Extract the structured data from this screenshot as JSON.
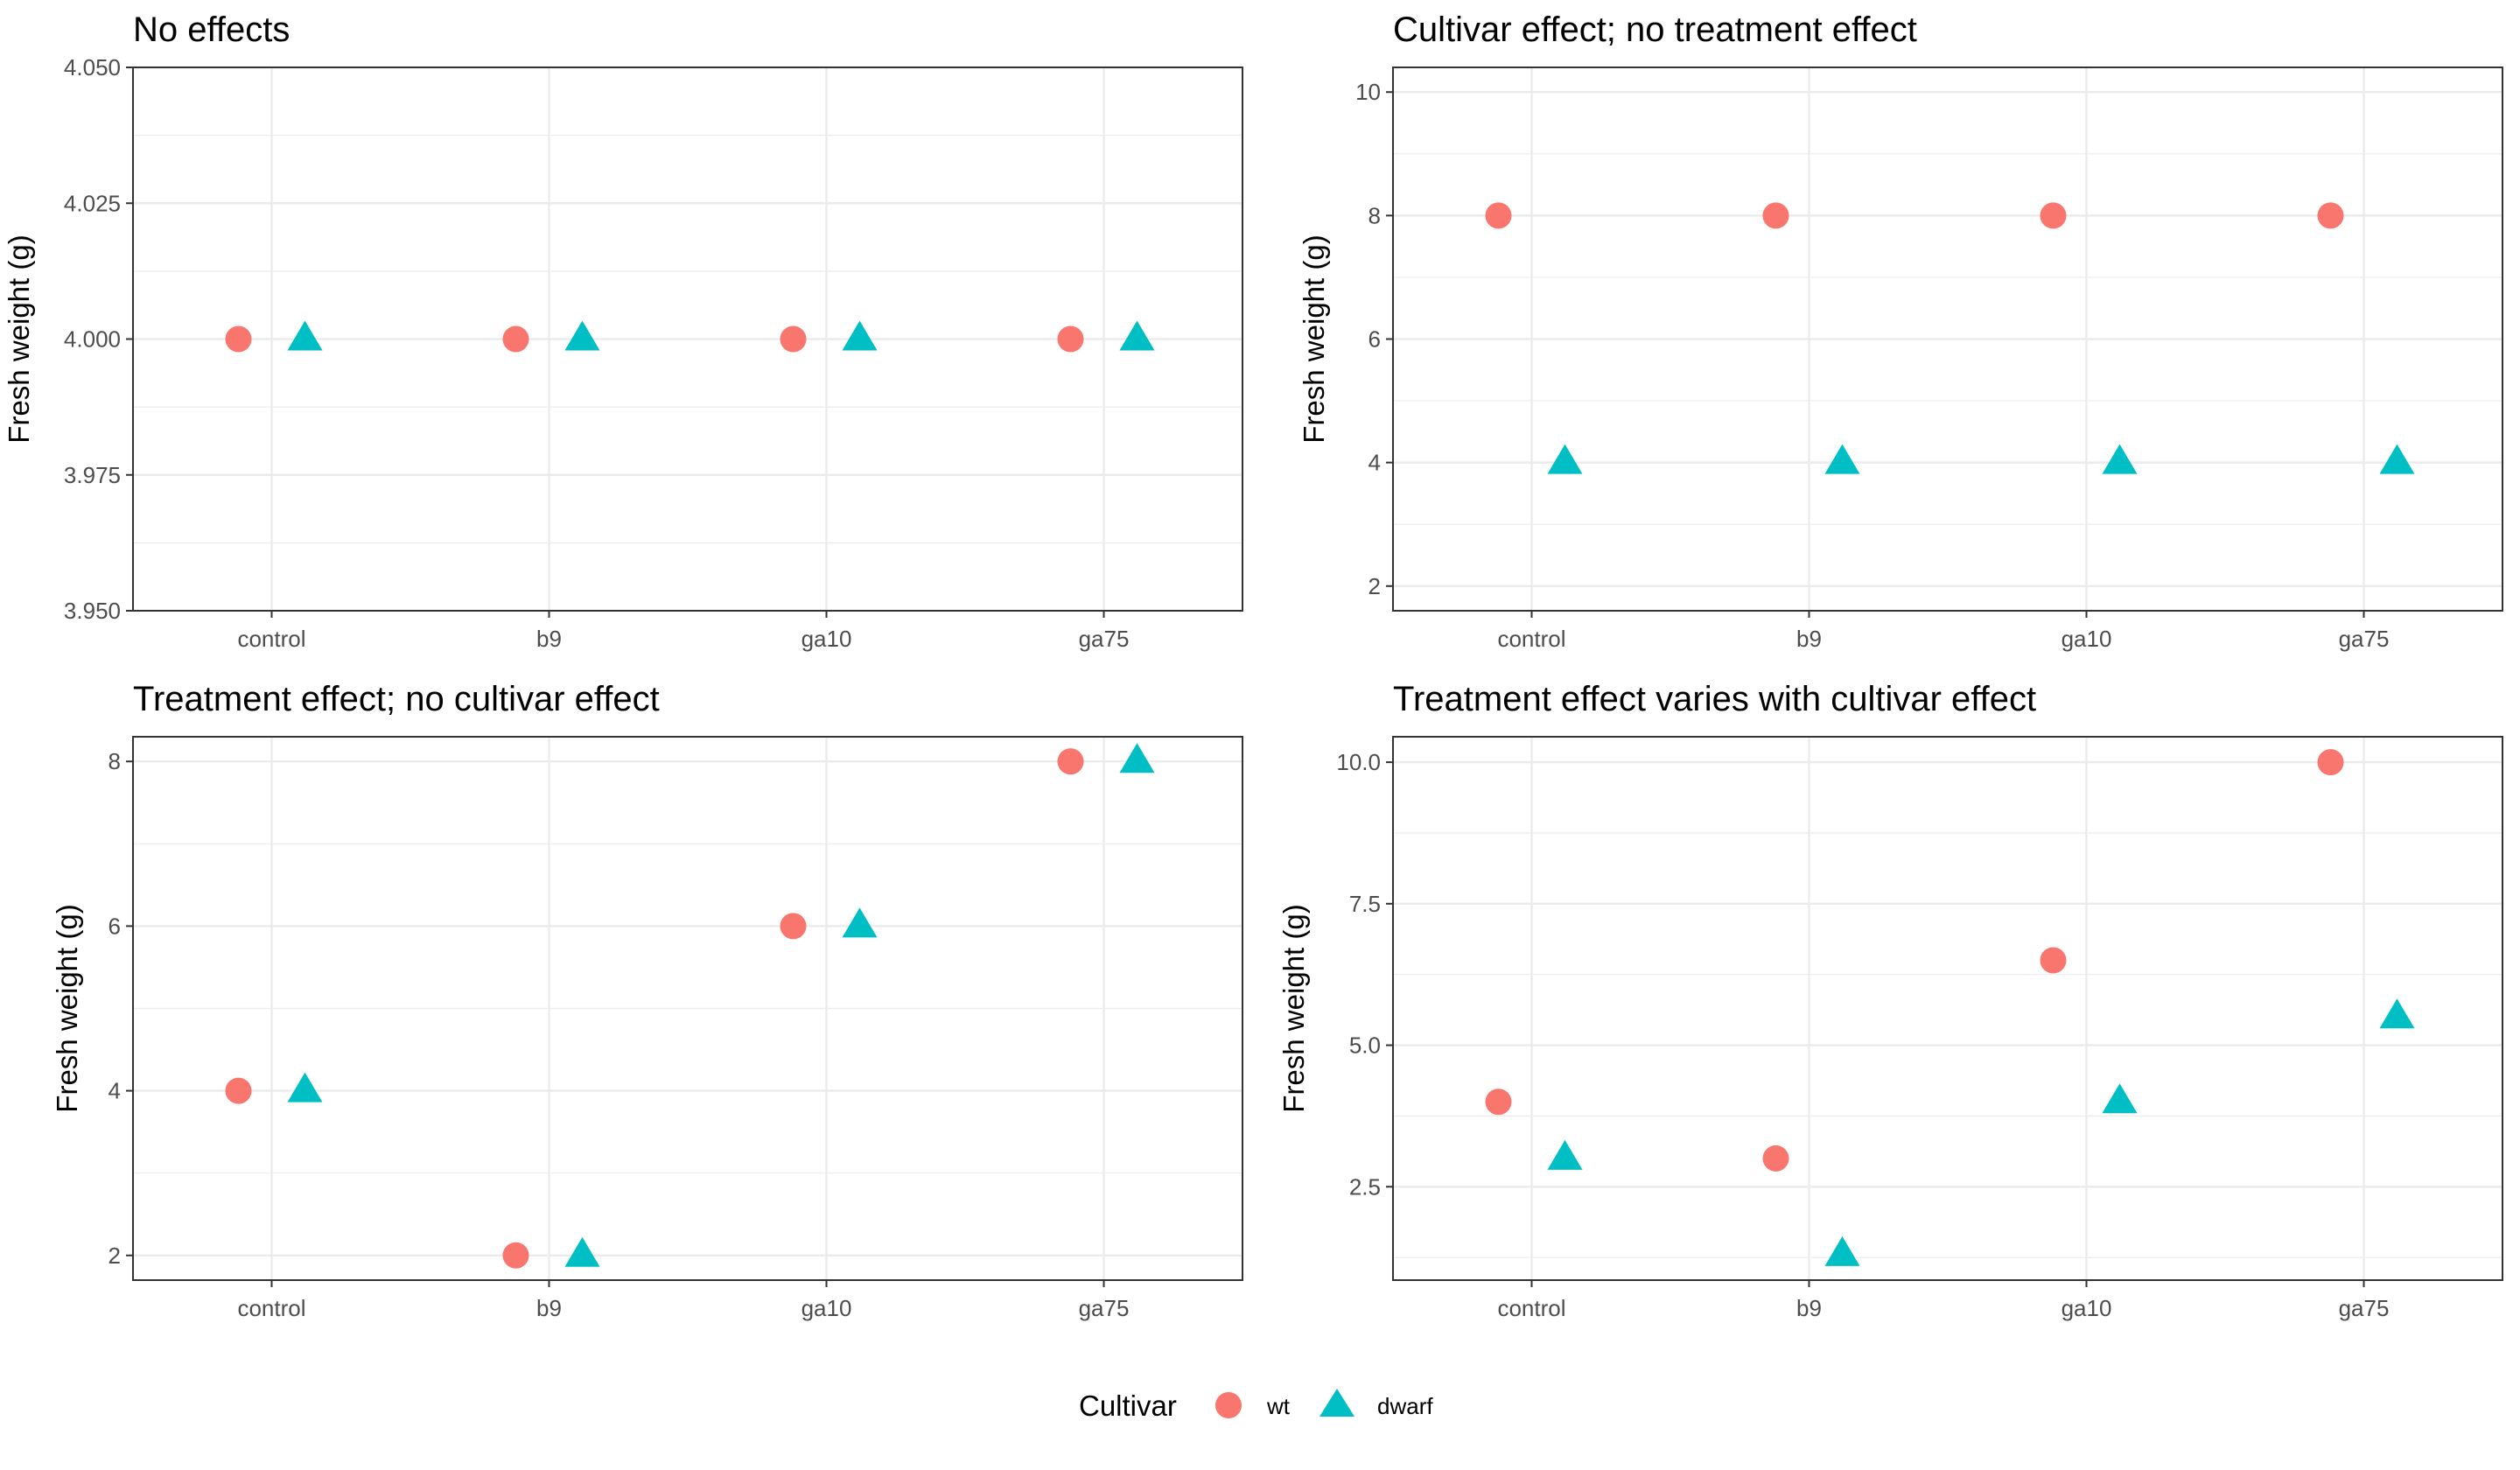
{
  "legend": {
    "title": "Cultivar",
    "items": [
      {
        "label": "wt",
        "shape": "circle",
        "color": "#F8766D"
      },
      {
        "label": "dwarf",
        "shape": "triangle",
        "color": "#00BFC4"
      }
    ]
  },
  "chart_data": [
    {
      "type": "scatter",
      "title": "No effects",
      "xlabel": "",
      "ylabel": "Fresh weight (g)",
      "categories": [
        "control",
        "b9",
        "ga10",
        "ga75"
      ],
      "ylim": [
        3.95,
        4.05
      ],
      "yticks": [
        3.95,
        3.975,
        4.0,
        4.025,
        4.05
      ],
      "ytick_labels": [
        "3.950",
        "3.975",
        "4.000",
        "4.025",
        "4.050"
      ],
      "series": [
        {
          "name": "wt",
          "values": [
            4,
            4,
            4,
            4
          ]
        },
        {
          "name": "dwarf",
          "values": [
            4,
            4,
            4,
            4
          ]
        }
      ],
      "grid": true
    },
    {
      "type": "scatter",
      "title": "Cultivar effect; no treatment effect",
      "xlabel": "",
      "ylabel": "Fresh weight (g)",
      "categories": [
        "control",
        "b9",
        "ga10",
        "ga75"
      ],
      "ylim": [
        1.6,
        10.4
      ],
      "yticks": [
        2,
        4,
        6,
        8,
        10
      ],
      "ytick_labels": [
        "2",
        "4",
        "6",
        "8",
        "10"
      ],
      "series": [
        {
          "name": "wt",
          "values": [
            8,
            8,
            8,
            8
          ]
        },
        {
          "name": "dwarf",
          "values": [
            4,
            4,
            4,
            4
          ]
        }
      ],
      "grid": true
    },
    {
      "type": "scatter",
      "title": "Treatment effect; no cultivar effect",
      "xlabel": "",
      "ylabel": "Fresh weight (g)",
      "categories": [
        "control",
        "b9",
        "ga10",
        "ga75"
      ],
      "ylim": [
        1.7,
        8.3
      ],
      "yticks": [
        2,
        4,
        6,
        8
      ],
      "ytick_labels": [
        "2",
        "4",
        "6",
        "8"
      ],
      "series": [
        {
          "name": "wt",
          "values": [
            4,
            2,
            6,
            8
          ]
        },
        {
          "name": "dwarf",
          "values": [
            4,
            2,
            6,
            8
          ]
        }
      ],
      "grid": true
    },
    {
      "type": "scatter",
      "title": "Treatment effect varies with cultivar effect",
      "xlabel": "",
      "ylabel": "Fresh weight (g)",
      "categories": [
        "control",
        "b9",
        "ga10",
        "ga75"
      ],
      "ylim": [
        0.85,
        10.45
      ],
      "yticks": [
        2.5,
        5.0,
        7.5,
        10.0
      ],
      "ytick_labels": [
        "2.5",
        "5.0",
        "7.5",
        "10.0"
      ],
      "series": [
        {
          "name": "wt",
          "values": [
            4,
            3,
            6.5,
            10
          ]
        },
        {
          "name": "dwarf",
          "values": [
            3,
            1.3,
            4,
            5.5
          ]
        }
      ],
      "grid": true
    }
  ]
}
